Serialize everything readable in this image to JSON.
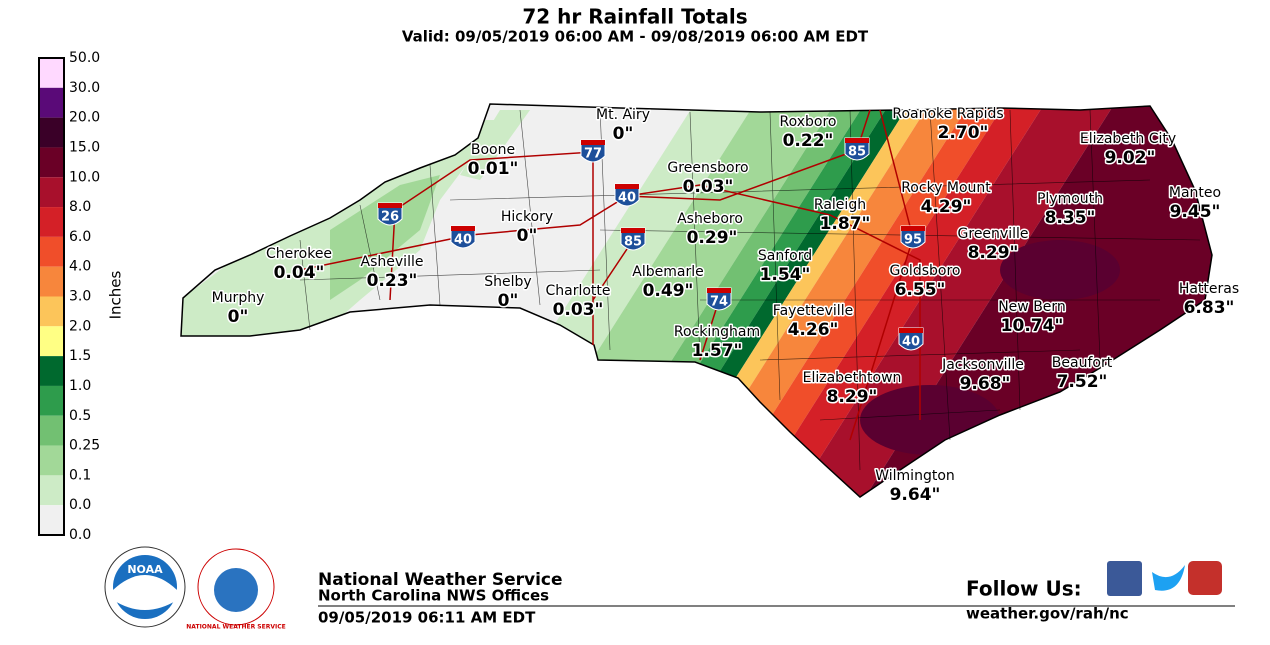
{
  "header": {
    "title": "72 hr Rainfall Totals",
    "subtitle": "Valid: 09/05/2019 06:00 AM - 09/08/2019 06:00 AM EDT"
  },
  "legend": {
    "title": "Inches",
    "labels": [
      "50.0",
      "30.0",
      "20.0",
      "15.0",
      "10.0",
      "8.0",
      "6.0",
      "4.0",
      "3.0",
      "2.0",
      "1.5",
      "1.0",
      "0.5",
      "0.25",
      "0.1",
      "0.0",
      "0.0"
    ],
    "colors": [
      "#ffd9ff",
      "#5a0a78",
      "#3a0028",
      "#6a0026",
      "#a8102c",
      "#d42027",
      "#f04e2a",
      "#f7863c",
      "#fcc55a",
      "#ffff84",
      "#00692e",
      "#2e9c4c",
      "#72c072",
      "#a2d898",
      "#cdebc6",
      "#f0f0f0"
    ]
  },
  "cities": [
    {
      "name": "Mt. Airy",
      "value": "0\""
    },
    {
      "name": "Roxboro",
      "value": "0.22\""
    },
    {
      "name": "Roanoke Rapids",
      "value": "2.70\""
    },
    {
      "name": "Elizabeth City",
      "value": "9.02\""
    },
    {
      "name": "Boone",
      "value": "0.01\""
    },
    {
      "name": "Greensboro",
      "value": "0.03\""
    },
    {
      "name": "Rocky Mount",
      "value": "4.29\""
    },
    {
      "name": "Plymouth",
      "value": "8.35\""
    },
    {
      "name": "Manteo",
      "value": "9.45\""
    },
    {
      "name": "Hickory",
      "value": "0\""
    },
    {
      "name": "Raleigh",
      "value": "1.87\""
    },
    {
      "name": "Asheboro",
      "value": "0.29\""
    },
    {
      "name": "Greenville",
      "value": "8.29\""
    },
    {
      "name": "Cherokee",
      "value": "0.04\""
    },
    {
      "name": "Asheville",
      "value": "0.23\""
    },
    {
      "name": "Sanford",
      "value": "1.54\""
    },
    {
      "name": "Albemarle",
      "value": "0.49\""
    },
    {
      "name": "Goldsboro",
      "value": "6.55\""
    },
    {
      "name": "Shelby",
      "value": "0\""
    },
    {
      "name": "Charlotte",
      "value": "0.03\""
    },
    {
      "name": "Hatteras",
      "value": "6.83\""
    },
    {
      "name": "Murphy",
      "value": "0\""
    },
    {
      "name": "New Bern",
      "value": "10.74\""
    },
    {
      "name": "Fayetteville",
      "value": "4.26\""
    },
    {
      "name": "Rockingham",
      "value": "1.57\""
    },
    {
      "name": "Jacksonville",
      "value": "9.68\""
    },
    {
      "name": "Beaufort",
      "value": "7.52\""
    },
    {
      "name": "Elizabethtown",
      "value": "8.29\""
    },
    {
      "name": "Wilmington",
      "value": "9.64\""
    }
  ],
  "interstates": [
    "77",
    "85",
    "40",
    "26",
    "40",
    "85",
    "74",
    "95",
    "40"
  ],
  "logos": {
    "noaa": "NOAA",
    "nws": "NATIONAL WEATHER SERVICE"
  },
  "footer": {
    "agency": "National Weather Service",
    "office": "North Carolina NWS Offices",
    "issued": "09/05/2019 06:11 AM EDT",
    "follow": "Follow Us:",
    "url": "weather.gov/rah/nc"
  }
}
